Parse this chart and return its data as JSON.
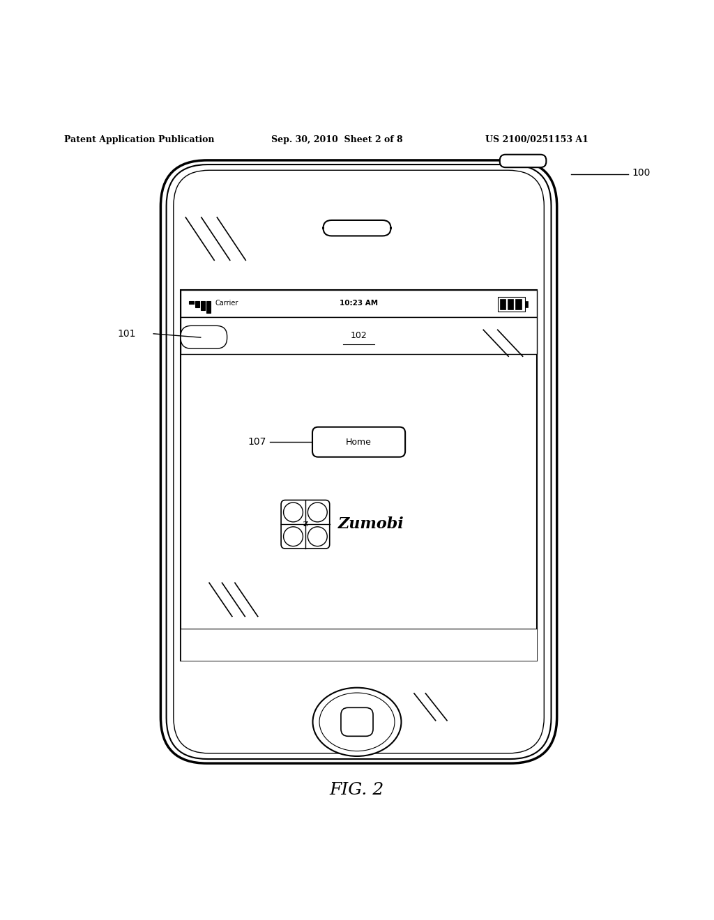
{
  "bg_color": "#ffffff",
  "line_color": "#000000",
  "title_header": "Patent Application Publication",
  "date_header": "Sep. 30, 2010  Sheet 2 of 8",
  "patent_header": "US 2100/0251153 A1",
  "fig_label": "FIG. 2",
  "label_100": "100",
  "label_101": "101",
  "label_102": "102",
  "label_107": "107",
  "status_text": "Carrier",
  "status_time": "10:23 AM",
  "home_btn_text": "Home",
  "zumobi_text": "Zumobi"
}
